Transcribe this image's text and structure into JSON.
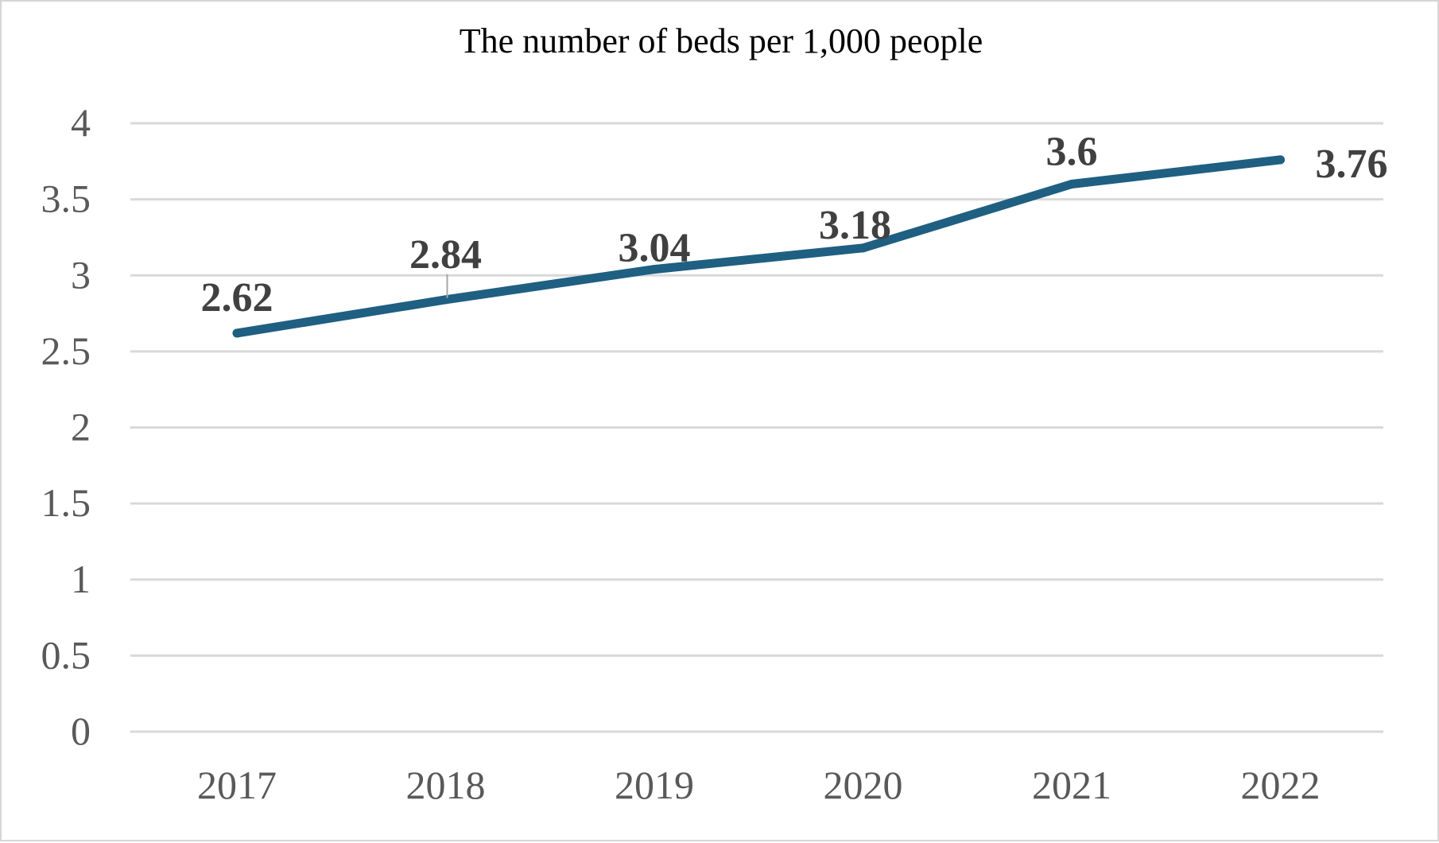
{
  "chart_data": {
    "type": "line",
    "title": "The number of beds per 1,000 people",
    "xlabel": "",
    "ylabel": "",
    "categories": [
      "2017",
      "2018",
      "2019",
      "2020",
      "2021",
      "2022"
    ],
    "series": [
      {
        "values": [
          2.62,
          2.84,
          3.04,
          3.18,
          3.6,
          3.76
        ],
        "data_labels": [
          "2.62",
          "2.84",
          "3.04",
          "3.18",
          "3.6",
          "3.76"
        ]
      }
    ],
    "y_ticks": [
      "0",
      "0.5",
      "1",
      "1.5",
      "2",
      "2.5",
      "3",
      "3.5",
      "4"
    ],
    "ylim": [
      0,
      4
    ],
    "grid": true,
    "legend": "none",
    "line_color": "#1f5f82",
    "grid_color": "#d9d9d9",
    "tick_color": "#595959",
    "label_color": "#404040"
  }
}
